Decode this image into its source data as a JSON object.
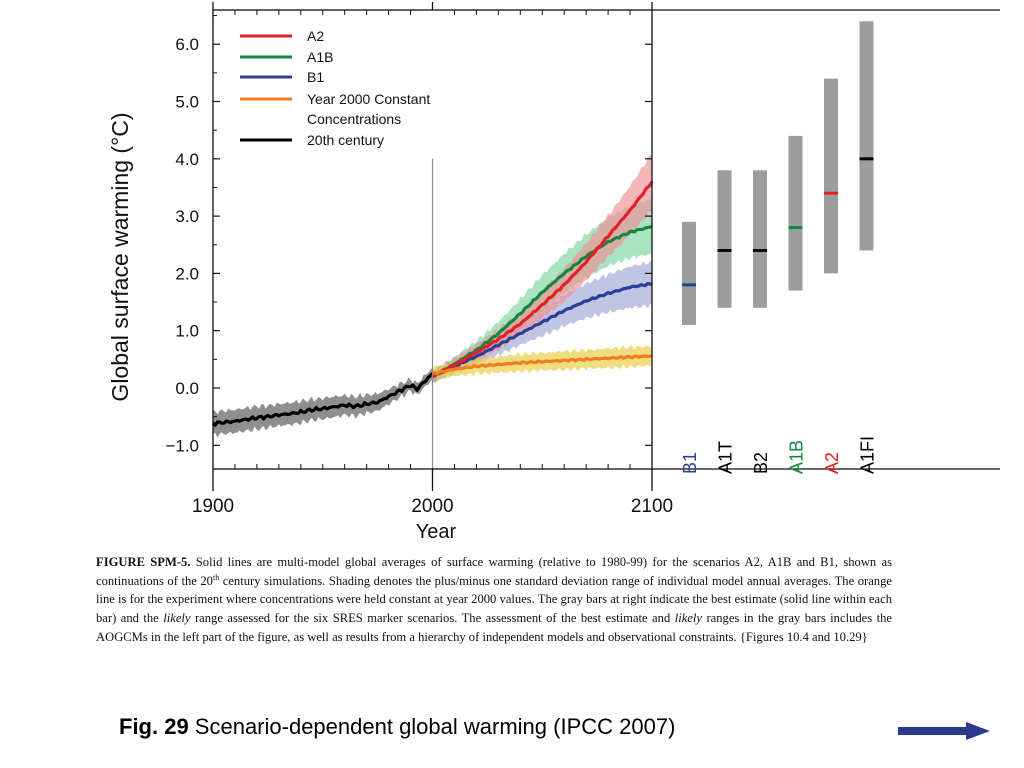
{
  "chart_data": {
    "type": "line",
    "xlabel": "Year",
    "ylabel": "Global surface warming (°C)",
    "xlim": [
      1900,
      2100
    ],
    "ylim": [
      -1.5,
      7.0
    ],
    "x_ticks": [
      "1900",
      "2000",
      "2100"
    ],
    "y_ticks": [
      "6.0",
      "5.0",
      "4.0",
      "3.0",
      "2.0",
      "1.0",
      "0.0",
      "−1.0"
    ],
    "grid": false,
    "legend_position": "top-left",
    "marker_line_year": 2000,
    "series": [
      {
        "name": "A2",
        "color": "#e3202a",
        "band_color": "#f08f95",
        "band_opacity": 0.65,
        "x": [
          2000,
          2010,
          2020,
          2030,
          2040,
          2050,
          2060,
          2070,
          2080,
          2090,
          2100
        ],
        "y": [
          0.2,
          0.4,
          0.62,
          0.85,
          1.12,
          1.45,
          1.8,
          2.2,
          2.65,
          3.1,
          3.6
        ],
        "sd": [
          0.1,
          0.12,
          0.15,
          0.18,
          0.2,
          0.24,
          0.28,
          0.32,
          0.36,
          0.42,
          0.5
        ]
      },
      {
        "name": "A1B",
        "color": "#12873e",
        "band_color": "#7dd4a0",
        "band_opacity": 0.65,
        "x": [
          2000,
          2010,
          2020,
          2030,
          2040,
          2050,
          2060,
          2070,
          2080,
          2090,
          2100
        ],
        "y": [
          0.2,
          0.42,
          0.66,
          0.95,
          1.3,
          1.67,
          2.0,
          2.3,
          2.55,
          2.72,
          2.82
        ],
        "sd": [
          0.1,
          0.12,
          0.16,
          0.2,
          0.25,
          0.3,
          0.34,
          0.38,
          0.42,
          0.45,
          0.48
        ]
      },
      {
        "name": "B1",
        "color": "#2b3f98",
        "band_color": "#a7acd8",
        "band_opacity": 0.7,
        "x": [
          2000,
          2010,
          2020,
          2030,
          2040,
          2050,
          2060,
          2070,
          2080,
          2090,
          2100
        ],
        "y": [
          0.2,
          0.38,
          0.55,
          0.75,
          0.95,
          1.15,
          1.35,
          1.52,
          1.65,
          1.76,
          1.82
        ],
        "sd": [
          0.1,
          0.12,
          0.14,
          0.17,
          0.2,
          0.24,
          0.27,
          0.3,
          0.33,
          0.36,
          0.38
        ]
      },
      {
        "name": "Year 2000 Constant Concentrations",
        "color": "#f47c20",
        "band_color": "#e8d04a",
        "band_opacity": 0.7,
        "x": [
          2000,
          2010,
          2020,
          2030,
          2040,
          2050,
          2060,
          2070,
          2080,
          2090,
          2100
        ],
        "y": [
          0.25,
          0.33,
          0.38,
          0.41,
          0.44,
          0.46,
          0.48,
          0.5,
          0.52,
          0.54,
          0.56
        ],
        "sd": [
          0.1,
          0.12,
          0.13,
          0.14,
          0.15,
          0.15,
          0.16,
          0.16,
          0.17,
          0.17,
          0.17
        ]
      },
      {
        "name": "20th century",
        "color": "#000000",
        "band_color": "#7b7b7b",
        "band_opacity": 0.85,
        "x": [
          1900,
          1905,
          1910,
          1915,
          1920,
          1925,
          1930,
          1935,
          1940,
          1945,
          1950,
          1955,
          1960,
          1965,
          1970,
          1975,
          1980,
          1985,
          1990,
          1993,
          1996,
          2000
        ],
        "y": [
          -0.62,
          -0.6,
          -0.58,
          -0.55,
          -0.52,
          -0.5,
          -0.47,
          -0.45,
          -0.42,
          -0.38,
          -0.36,
          -0.33,
          -0.3,
          -0.32,
          -0.28,
          -0.25,
          -0.15,
          -0.05,
          0.05,
          -0.02,
          0.1,
          0.25
        ],
        "sd": [
          0.2,
          0.2,
          0.2,
          0.2,
          0.2,
          0.19,
          0.19,
          0.19,
          0.19,
          0.18,
          0.18,
          0.18,
          0.17,
          0.17,
          0.16,
          0.15,
          0.13,
          0.12,
          0.1,
          0.1,
          0.1,
          0.1
        ]
      }
    ],
    "likely_ranges": [
      {
        "name": "B1",
        "label_color": "#2b3f98",
        "low": 1.1,
        "high": 2.9,
        "best": 1.8,
        "best_color": "#2b3f98"
      },
      {
        "name": "A1T",
        "label_color": "#000000",
        "low": 1.4,
        "high": 3.8,
        "best": 2.4,
        "best_color": "#000000"
      },
      {
        "name": "B2",
        "label_color": "#000000",
        "low": 1.4,
        "high": 3.8,
        "best": 2.4,
        "best_color": "#000000"
      },
      {
        "name": "A1B",
        "label_color": "#12873e",
        "low": 1.7,
        "high": 4.4,
        "best": 2.8,
        "best_color": "#12873e"
      },
      {
        "name": "A2",
        "label_color": "#e3202a",
        "low": 2.0,
        "high": 5.4,
        "best": 3.4,
        "best_color": "#e3202a"
      },
      {
        "name": "A1FI",
        "label_color": "#000000",
        "low": 2.4,
        "high": 6.4,
        "best": 4.0,
        "best_color": "#000000"
      }
    ],
    "range_bar_color": "#9d9d9d"
  },
  "caption": {
    "label": "FIGURE SPM-5.",
    "p1": " Solid lines are multi-model global averages of surface warming (relative to 1980-99) for the scenarios A2, A1B and B1, shown as continuations of the 20",
    "p1_sup": "th",
    "p2": " century simulations. Shading denotes the plus/minus one standard deviation range of individual model annual averages. The orange line is for the experiment where concentrations were held constant at year 2000 values. The gray bars at right indicate the best estimate (solid line within each bar) and the ",
    "it1": "likely",
    "p3": " range assessed for the six SRES marker scenarios. The assessment of the best estimate and ",
    "it2": "likely",
    "p4": " ranges in the gray bars includes the AOGCMs in the left part of the figure, as well as results from a hierarchy of independent models and observational constraints. {Figures 10.4 and 10.29}"
  },
  "slide": {
    "fig_label": "Fig. 29",
    "fig_title": " Scenario-dependent global warming (IPCC 2007)",
    "next_arrow_icon": "right-arrow-icon",
    "arrow_color": "#2b3a8f"
  }
}
